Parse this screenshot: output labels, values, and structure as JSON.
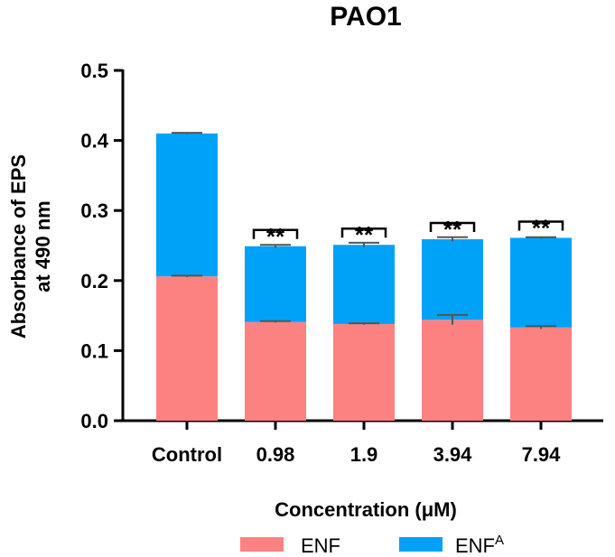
{
  "chart_data": {
    "type": "bar",
    "stacked": true,
    "title": "PAO1",
    "xlabel": "Concentration (μM)",
    "ylabel": [
      "Absorbance of EPS",
      "at 490 nm"
    ],
    "ylim": [
      0,
      0.5
    ],
    "yticks": [
      "0.0",
      "0.1",
      "0.2",
      "0.3",
      "0.4",
      "0.5"
    ],
    "categories": [
      "Control",
      "0.98",
      "1.9",
      "3.94",
      "7.94"
    ],
    "series": [
      {
        "name": "ENF",
        "color": "#fc8282",
        "values": [
          0.206,
          0.141,
          0.138,
          0.144,
          0.133
        ],
        "errors": [
          0.001,
          0.001,
          0.001,
          0.007,
          0.002
        ]
      },
      {
        "name": "ENF",
        "name_sup": "A",
        "color": "#00a2f7",
        "values": [
          0.204,
          0.108,
          0.113,
          0.115,
          0.128
        ],
        "errors": [
          0.001,
          0.002,
          0.003,
          0.003,
          0.001
        ]
      }
    ],
    "significance": [
      "",
      "**",
      "**",
      "**",
      "**"
    ],
    "legend_position": "bottom"
  }
}
